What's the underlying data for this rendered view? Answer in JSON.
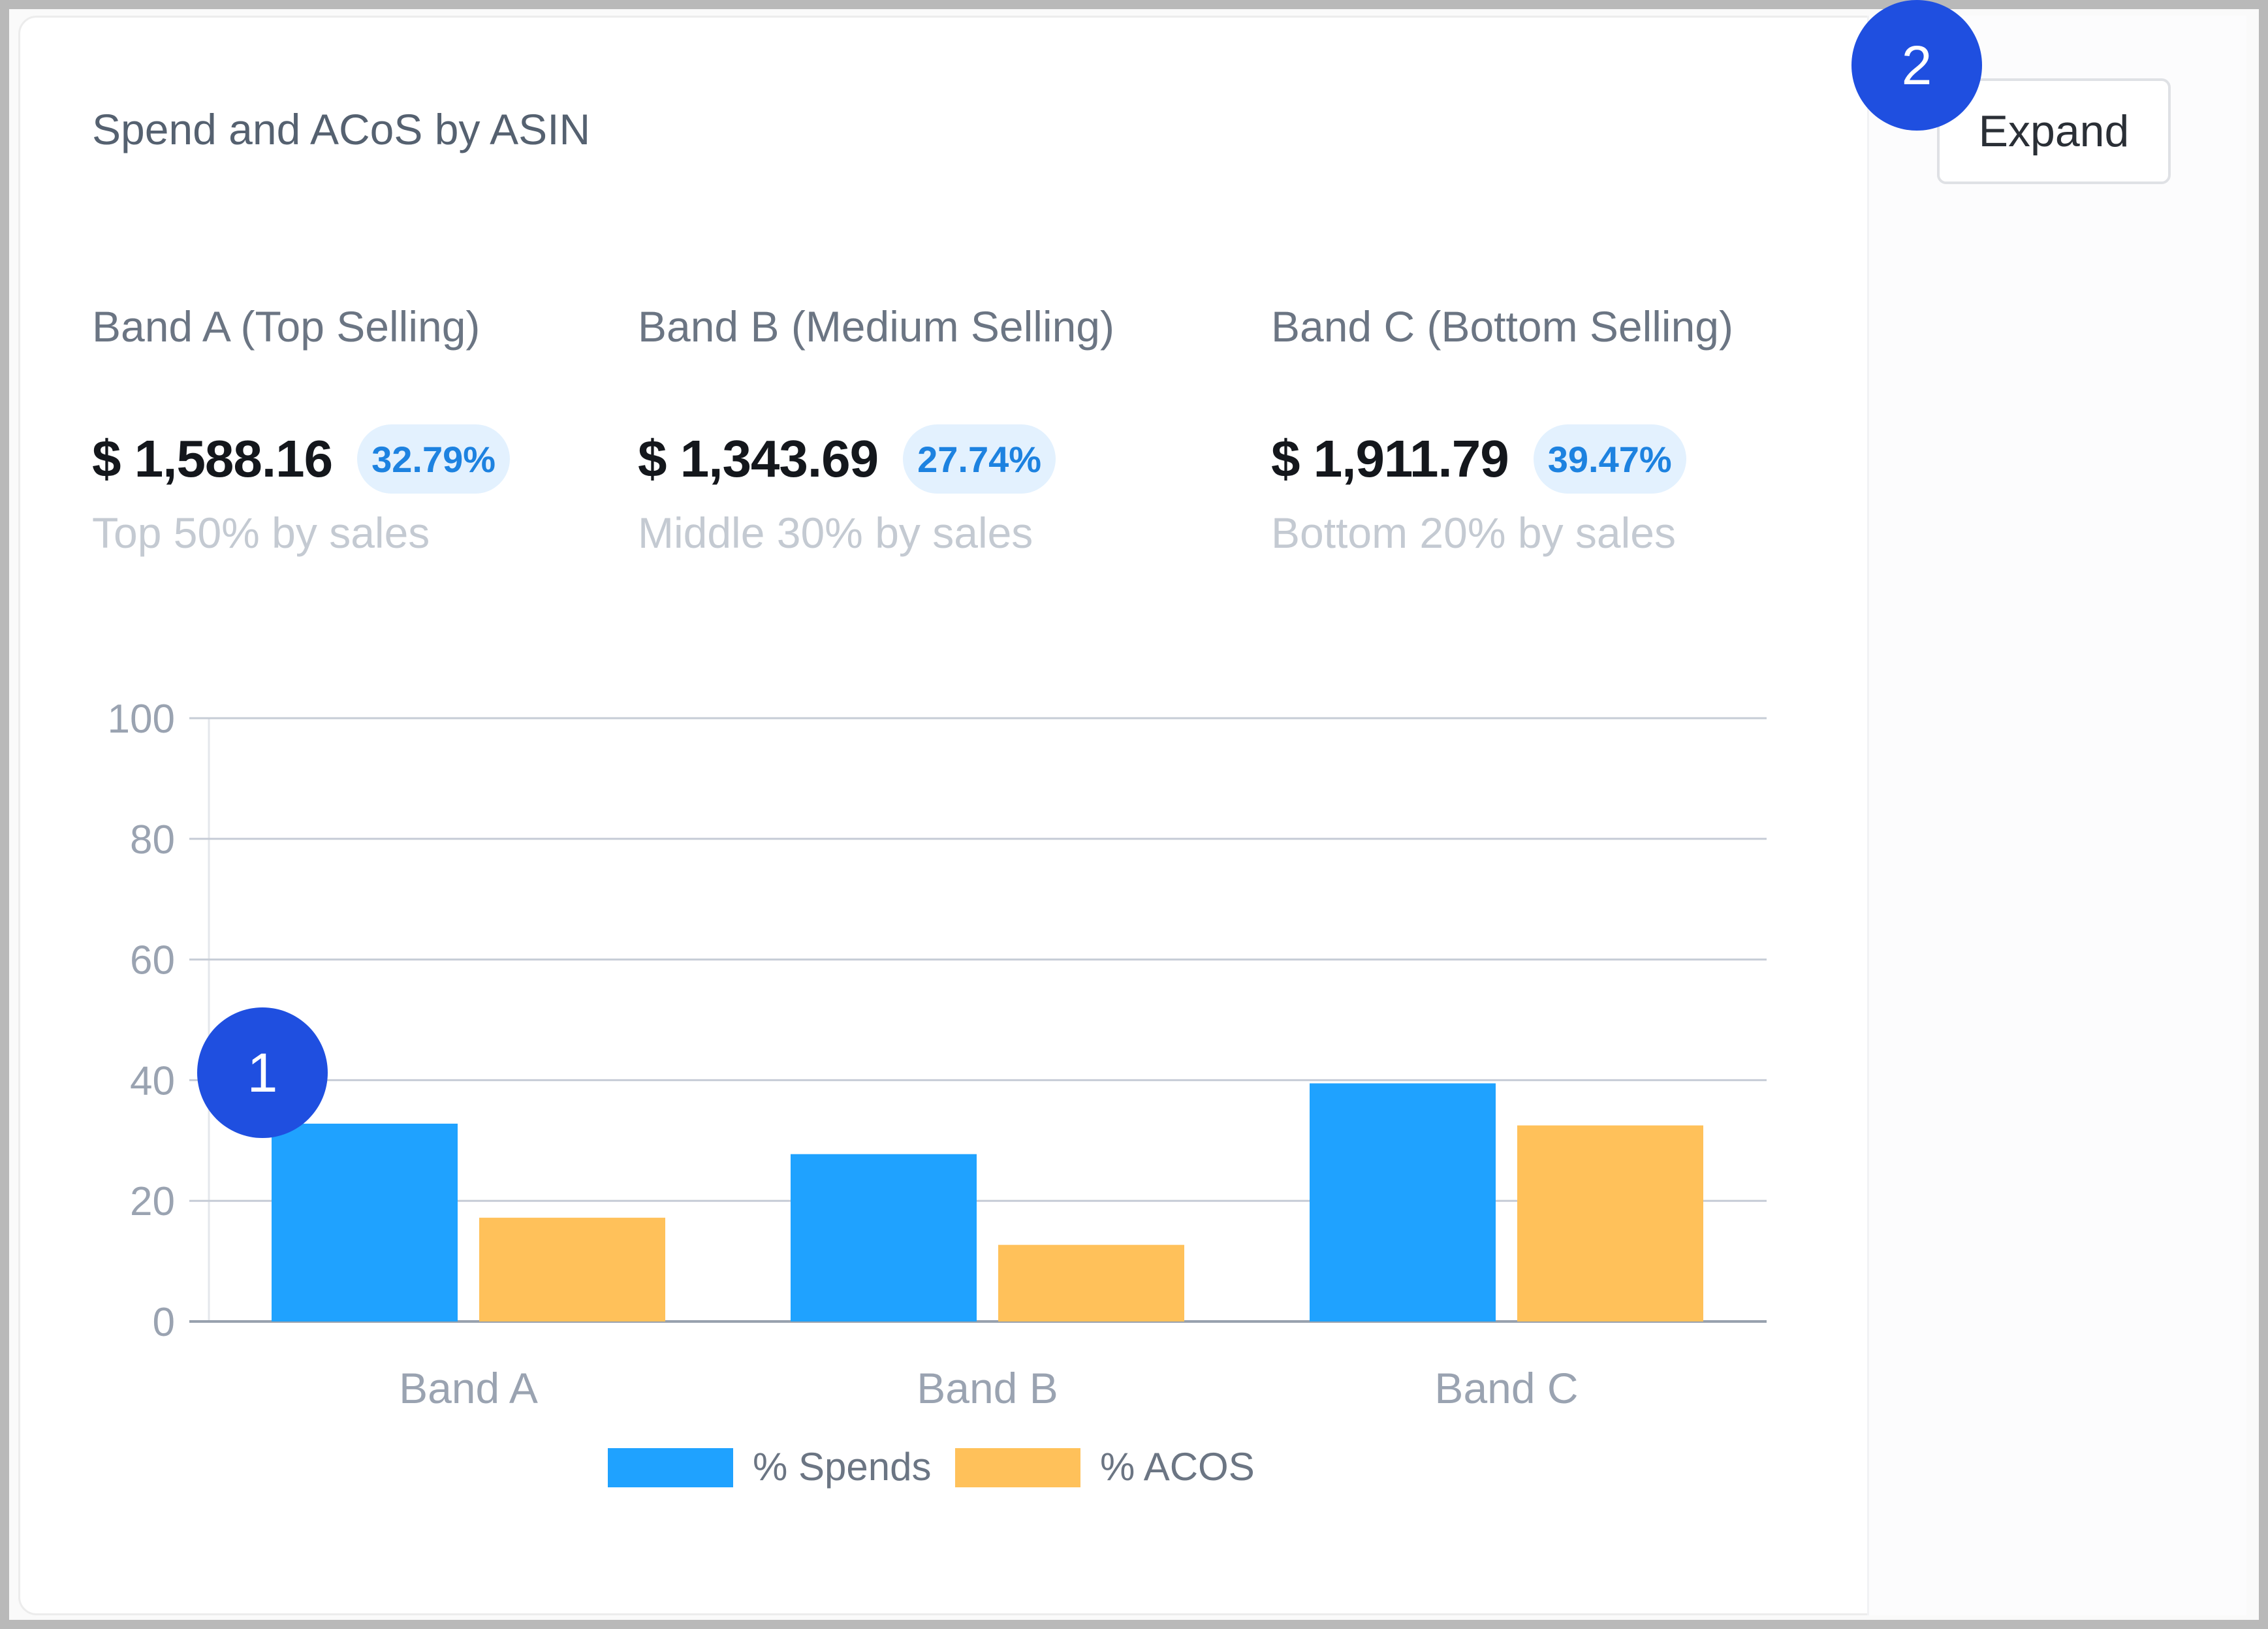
{
  "card": {
    "title": "Spend and ACoS by ASIN",
    "expand_label": "Expand"
  },
  "bands": [
    {
      "title": "Band A (Top Selling)",
      "amount": "$ 1,588.16",
      "share": "32.79%",
      "subtitle": "Top 50% by sales"
    },
    {
      "title": "Band B (Medium Selling)",
      "amount": "$ 1,343.69",
      "share": "27.74%",
      "subtitle": "Middle 30% by sales"
    },
    {
      "title": "Band C (Bottom Selling)",
      "amount": "$ 1,911.79",
      "share": "39.47%",
      "subtitle": "Bottom 20% by sales"
    }
  ],
  "markers": [
    "1",
    "2"
  ],
  "chart_data": {
    "type": "bar",
    "categories": [
      "Band A",
      "Band B",
      "Band C"
    ],
    "series": [
      {
        "name": "% Spends",
        "values": [
          32.79,
          27.74,
          39.47
        ],
        "color": "#1fa2ff"
      },
      {
        "name": "% ACOS",
        "values": [
          17.2,
          12.7,
          32.5
        ],
        "color": "#ffc15a"
      }
    ],
    "ylim": [
      0,
      100
    ],
    "yticks": [
      "0",
      "20",
      "40",
      "60",
      "80",
      "100"
    ],
    "grid": true,
    "legend": "bottom"
  }
}
